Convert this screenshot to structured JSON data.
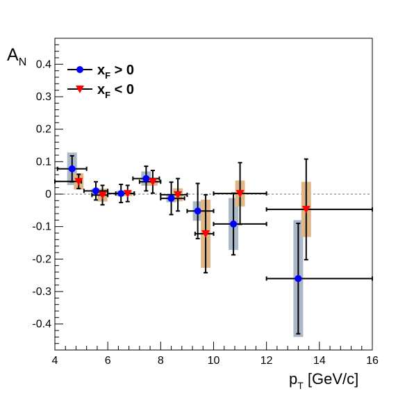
{
  "chart_data": {
    "type": "scatter",
    "title": "",
    "xlabel": {
      "main": "p",
      "sub": "T",
      "rest": " [GeV/c]"
    },
    "ylabel": {
      "main": "A",
      "sub": "N"
    },
    "xlim": [
      4,
      16
    ],
    "ylim": [
      -0.48,
      0.48
    ],
    "xticks": [
      "4",
      "6",
      "8",
      "10",
      "12",
      "14",
      "16"
    ],
    "yticks": [
      "-0.4",
      "-0.3",
      "-0.2",
      "-0.1",
      "0",
      "0.1",
      "0.2",
      "0.3",
      "0.4"
    ],
    "reference_line": {
      "y": 0,
      "style": "dashed",
      "color": "#888888"
    },
    "legend_position": "top-left",
    "series": [
      {
        "name": {
          "main": "x",
          "sub": "F",
          "rest": " > 0"
        },
        "marker": "circle",
        "color": "#0000ff",
        "syst_color": "#aab8c8",
        "points": [
          {
            "x": 4.65,
            "y": 0.078,
            "xerr": [
              0.55,
              0.55
            ],
            "yerr": 0.04,
            "syst": 0.05
          },
          {
            "x": 5.55,
            "y": 0.01,
            "xerr": [
              0.45,
              0.45
            ],
            "yerr": 0.028,
            "syst": 0.006
          },
          {
            "x": 6.5,
            "y": 0.002,
            "xerr": [
              0.5,
              0.5
            ],
            "yerr": 0.028,
            "syst": 0.008
          },
          {
            "x": 7.45,
            "y": 0.048,
            "xerr": [
              0.5,
              0.5
            ],
            "yerr": 0.038,
            "syst": 0.022
          },
          {
            "x": 8.4,
            "y": -0.013,
            "xerr": [
              0.4,
              0.5
            ],
            "yerr": 0.05,
            "syst": 0.012
          },
          {
            "x": 9.4,
            "y": -0.052,
            "xerr": [
              0.4,
              0.6
            ],
            "yerr": 0.085,
            "syst": 0.03
          },
          {
            "x": 10.75,
            "y": -0.092,
            "xerr": [
              0.75,
              1.25
            ],
            "yerr": 0.095,
            "syst": 0.08
          },
          {
            "x": 13.2,
            "y": -0.26,
            "xerr": [
              1.2,
              2.8
            ],
            "yerr": 0.17,
            "syst": 0.18
          }
        ]
      },
      {
        "name": {
          "main": "x",
          "sub": "F",
          "rest": " < 0"
        },
        "marker": "triangle-down",
        "color": "#ff0000",
        "syst_color": "#e0b888",
        "points": [
          {
            "x": 4.9,
            "y": 0.039,
            "xerr": [
              0.9,
              0.1
            ],
            "yerr": 0.022,
            "syst": 0.025
          },
          {
            "x": 5.8,
            "y": -0.003,
            "xerr": [
              0.4,
              0.2
            ],
            "yerr": 0.03,
            "syst": 0.02
          },
          {
            "x": 6.75,
            "y": 0.002,
            "xerr": [
              0.45,
              0.25
            ],
            "yerr": 0.025,
            "syst": 0.008
          },
          {
            "x": 7.7,
            "y": 0.038,
            "xerr": [
              0.5,
              0.3
            ],
            "yerr": 0.035,
            "syst": 0.012
          },
          {
            "x": 8.65,
            "y": -0.002,
            "xerr": [
              0.65,
              0.35
            ],
            "yerr": 0.05,
            "syst": 0.02
          },
          {
            "x": 9.7,
            "y": -0.122,
            "xerr": [
              0.4,
              0.3
            ],
            "yerr": 0.12,
            "syst": 0.105
          },
          {
            "x": 11.0,
            "y": 0.002,
            "xerr": [
              1.0,
              1.0
            ],
            "yerr": 0.095,
            "syst": 0.04
          },
          {
            "x": 13.5,
            "y": -0.047,
            "xerr": [
              1.5,
              2.5
            ],
            "yerr": 0.155,
            "syst": 0.085
          }
        ]
      }
    ]
  }
}
